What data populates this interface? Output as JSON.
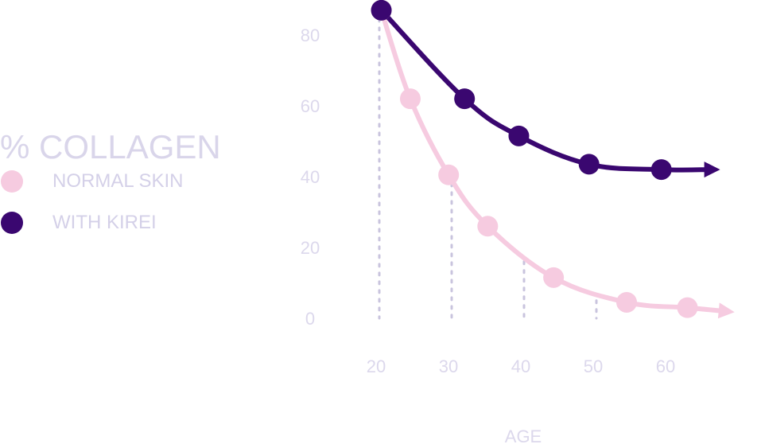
{
  "legend": {
    "title": "% COLLAGEN",
    "items": [
      {
        "label": "NORMAL SKIN",
        "color": "#f6cbe0"
      },
      {
        "label": "WITH KIREI",
        "color": "#3a0770"
      }
    ]
  },
  "chart_data": {
    "type": "line",
    "title": "% COLLAGEN",
    "xlabel": "AGE",
    "ylabel": "% COLLAGEN",
    "x_ticks": [
      "20",
      "30",
      "40",
      "50",
      "60"
    ],
    "y_ticks": [
      "0",
      "20",
      "40",
      "60",
      "80"
    ],
    "xlim": [
      20,
      60
    ],
    "ylim": [
      0,
      80
    ],
    "grid": false,
    "legend_position": "left",
    "reference_lines": [
      {
        "x": 20,
        "y_top": 87
      },
      {
        "x": 30,
        "y_top": 38
      },
      {
        "x": 40,
        "y_top": 16
      },
      {
        "x": 50,
        "y_top": 5
      }
    ],
    "series": [
      {
        "name": "NORMAL SKIN",
        "color": "#f6cbe0",
        "x": [
          20.5,
          24.5,
          29.8,
          35.2,
          44.3,
          54.4,
          62.8
        ],
        "y": [
          87,
          62,
          40.5,
          26,
          11.5,
          4.5,
          3
        ],
        "curve_end": [
          68,
          2
        ]
      },
      {
        "name": "WITH KIREI",
        "color": "#3a0770",
        "x": [
          20.5,
          32,
          39.5,
          49.2,
          59.2
        ],
        "y": [
          87,
          62,
          51.5,
          43.5,
          42
        ],
        "curve_end": [
          66,
          42
        ]
      }
    ]
  }
}
